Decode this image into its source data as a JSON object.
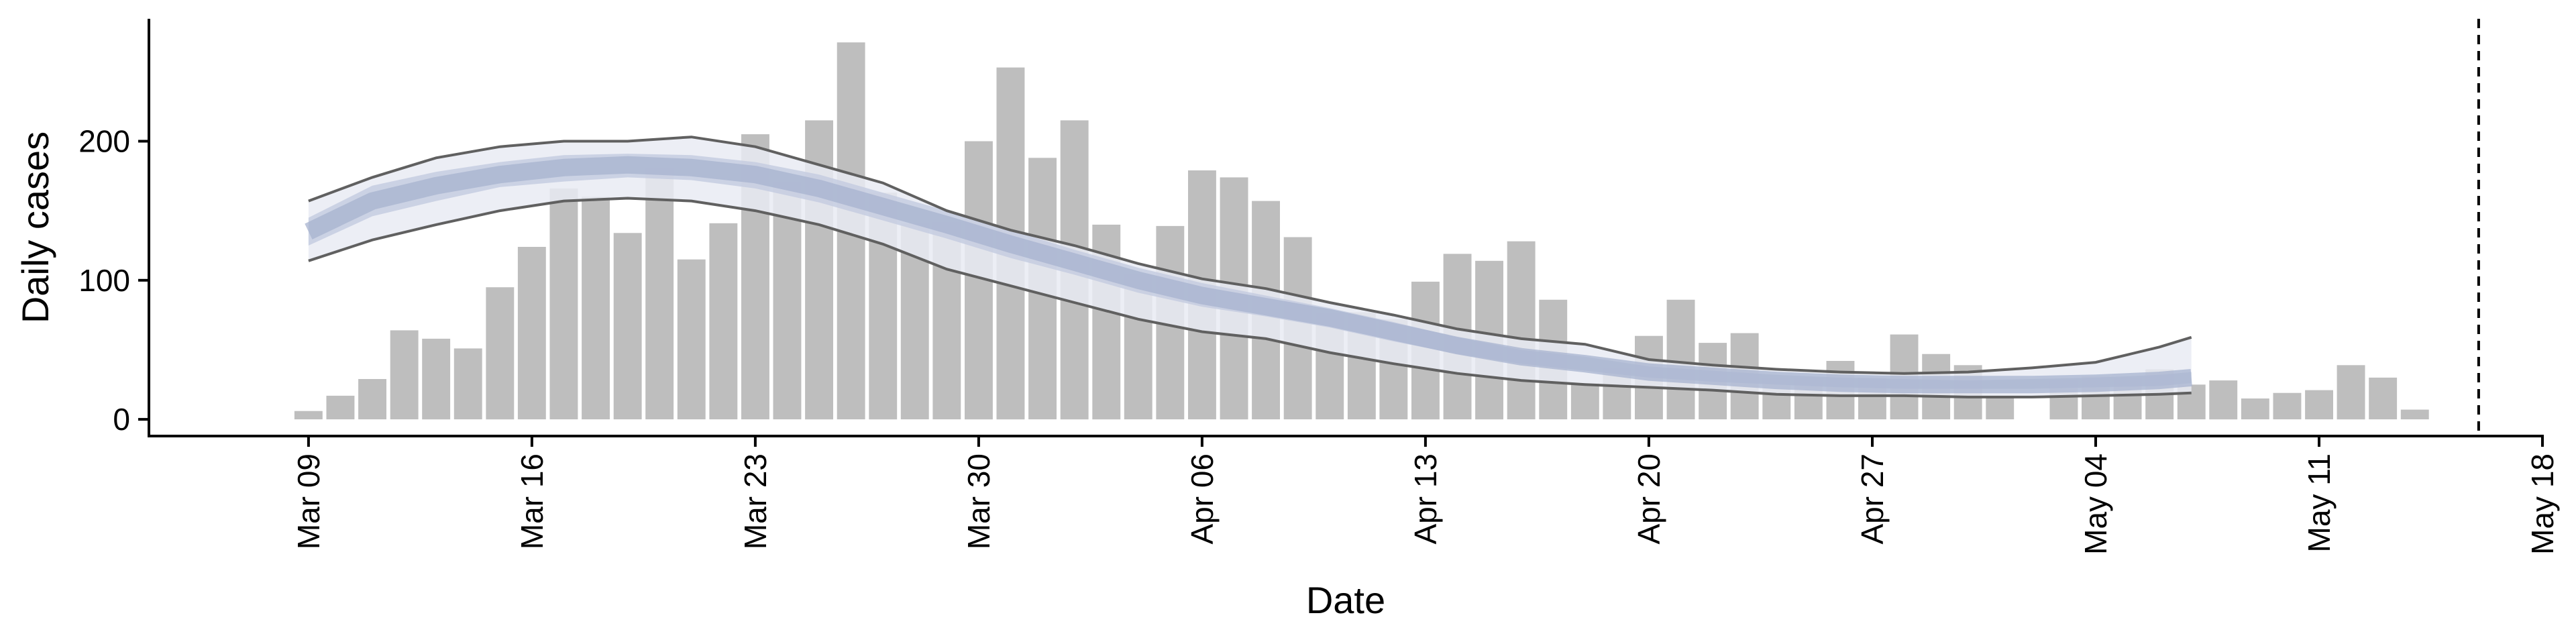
{
  "chart_data": {
    "type": "bar",
    "xlabel": "Date",
    "ylabel": "Daily cases",
    "ylim": [
      -12,
      288
    ],
    "x_range": [
      "2020-03-04",
      "2020-05-18"
    ],
    "grid": false,
    "legend": "none",
    "y_ticks": [
      0,
      100,
      200
    ],
    "x_ticks": [
      {
        "date": "2020-03-09",
        "label": "Mar 09"
      },
      {
        "date": "2020-03-16",
        "label": "Mar 16"
      },
      {
        "date": "2020-03-23",
        "label": "Mar 23"
      },
      {
        "date": "2020-03-30",
        "label": "Mar 30"
      },
      {
        "date": "2020-04-06",
        "label": "Apr 06"
      },
      {
        "date": "2020-04-13",
        "label": "Apr 13"
      },
      {
        "date": "2020-04-20",
        "label": "Apr 20"
      },
      {
        "date": "2020-04-27",
        "label": "Apr 27"
      },
      {
        "date": "2020-05-04",
        "label": "May 04"
      },
      {
        "date": "2020-05-11",
        "label": "May 11"
      },
      {
        "date": "2020-05-18",
        "label": "May 18"
      }
    ],
    "vline_date": "2020-05-16",
    "bars": {
      "dates": [
        "2020-03-09",
        "2020-03-10",
        "2020-03-11",
        "2020-03-12",
        "2020-03-13",
        "2020-03-14",
        "2020-03-15",
        "2020-03-16",
        "2020-03-17",
        "2020-03-18",
        "2020-03-19",
        "2020-03-20",
        "2020-03-21",
        "2020-03-22",
        "2020-03-23",
        "2020-03-24",
        "2020-03-25",
        "2020-03-26",
        "2020-03-27",
        "2020-03-28",
        "2020-03-29",
        "2020-03-30",
        "2020-03-31",
        "2020-04-01",
        "2020-04-02",
        "2020-04-03",
        "2020-04-04",
        "2020-04-05",
        "2020-04-06",
        "2020-04-07",
        "2020-04-08",
        "2020-04-09",
        "2020-04-10",
        "2020-04-11",
        "2020-04-12",
        "2020-04-13",
        "2020-04-14",
        "2020-04-15",
        "2020-04-16",
        "2020-04-17",
        "2020-04-18",
        "2020-04-19",
        "2020-04-20",
        "2020-04-21",
        "2020-04-22",
        "2020-04-23",
        "2020-04-24",
        "2020-04-25",
        "2020-04-26",
        "2020-04-27",
        "2020-04-28",
        "2020-04-29",
        "2020-04-30",
        "2020-05-01",
        "2020-05-02",
        "2020-05-03",
        "2020-05-04",
        "2020-05-05",
        "2020-05-06",
        "2020-05-07",
        "2020-05-08",
        "2020-05-09",
        "2020-05-10",
        "2020-05-11",
        "2020-05-12",
        "2020-05-13",
        "2020-05-14",
        "2020-05-15"
      ],
      "values": [
        6,
        17,
        29,
        64,
        58,
        51,
        95,
        124,
        166,
        160,
        134,
        181,
        115,
        141,
        205,
        171,
        215,
        271,
        163,
        141,
        142,
        200,
        253,
        188,
        215,
        140,
        104,
        139,
        179,
        174,
        157,
        131,
        76,
        77,
        72,
        99,
        119,
        114,
        128,
        86,
        26,
        37,
        60,
        86,
        55,
        62,
        30,
        30,
        42,
        30,
        61,
        47,
        39,
        17,
        0,
        28,
        31,
        30,
        36,
        25,
        28,
        15,
        19,
        21,
        39,
        30,
        7,
        0
      ],
      "color": "#bebebe"
    },
    "nowcast": {
      "dates": [
        "2020-03-09",
        "2020-03-11",
        "2020-03-13",
        "2020-03-15",
        "2020-03-17",
        "2020-03-19",
        "2020-03-21",
        "2020-03-23",
        "2020-03-25",
        "2020-03-27",
        "2020-03-29",
        "2020-03-31",
        "2020-04-02",
        "2020-04-04",
        "2020-04-06",
        "2020-04-08",
        "2020-04-10",
        "2020-04-12",
        "2020-04-14",
        "2020-04-16",
        "2020-04-18",
        "2020-04-20",
        "2020-04-22",
        "2020-04-24",
        "2020-04-26",
        "2020-04-28",
        "2020-04-30",
        "2020-05-02",
        "2020-05-04",
        "2020-05-06",
        "2020-05-07"
      ],
      "median": [
        135,
        157,
        168,
        176,
        181,
        183,
        181,
        176,
        166,
        153,
        140,
        126,
        113,
        100,
        89,
        81,
        73,
        63,
        53,
        45,
        40,
        34,
        31,
        28,
        26,
        25,
        25,
        25,
        26,
        28,
        30
      ],
      "lower90": [
        114,
        129,
        140,
        150,
        157,
        159,
        157,
        150,
        140,
        126,
        108,
        96,
        84,
        72,
        63,
        58,
        48,
        40,
        33,
        28,
        25,
        23,
        21,
        18,
        17,
        17,
        16,
        16,
        17,
        18,
        19
      ],
      "upper90": [
        157,
        174,
        188,
        196,
        200,
        200,
        203,
        196,
        183,
        170,
        150,
        136,
        125,
        112,
        101,
        94,
        84,
        75,
        65,
        58,
        54,
        43,
        39,
        36,
        34,
        33,
        34,
        37,
        41,
        52,
        59
      ],
      "lower50": [
        125,
        146,
        157,
        167,
        171,
        174,
        172,
        166,
        156,
        143,
        130,
        116,
        104,
        91,
        81,
        74,
        66,
        56,
        47,
        40,
        35,
        30,
        27,
        25,
        23,
        22,
        22,
        22,
        23,
        24,
        26
      ],
      "upper50": [
        145,
        168,
        178,
        185,
        190,
        191,
        190,
        185,
        176,
        163,
        150,
        136,
        122,
        109,
        98,
        89,
        80,
        70,
        59,
        50,
        45,
        38,
        35,
        32,
        30,
        29,
        28,
        29,
        30,
        32,
        34
      ],
      "color_outer": "#e9ebf3",
      "color_inner": "#c6cde0",
      "color_median": "#a7b3cf",
      "color_bound_line": "#606060"
    }
  }
}
